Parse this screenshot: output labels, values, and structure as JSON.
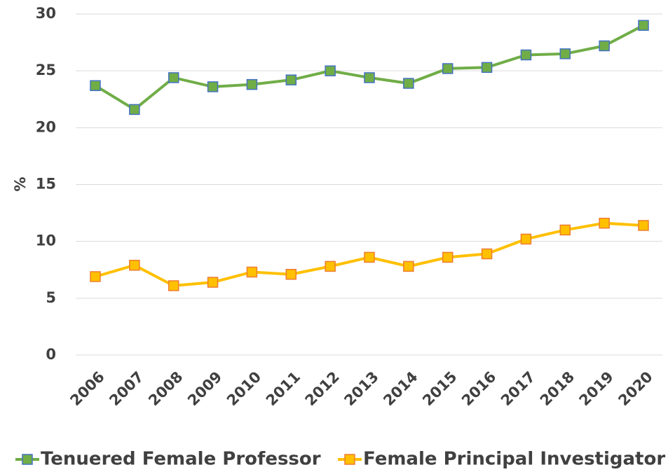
{
  "chart_data": {
    "type": "line",
    "y_label": "%",
    "categories": [
      "2006",
      "2007",
      "2008",
      "2009",
      "2010",
      "2011",
      "2012",
      "2013",
      "2014",
      "2015",
      "2016",
      "2017",
      "2018",
      "2019",
      "2020"
    ],
    "series": [
      {
        "name": "Tenuered Female Professor",
        "color": "#70ad47",
        "marker_edge": "#4472c4",
        "values": [
          23.7,
          21.6,
          24.4,
          23.6,
          23.8,
          24.2,
          25.0,
          24.4,
          23.9,
          25.2,
          25.3,
          26.4,
          26.5,
          27.2,
          29.0
        ]
      },
      {
        "name": "Female Principal Investigator",
        "color": "#ffc000",
        "marker_edge": "#ed7d31",
        "values": [
          6.9,
          7.9,
          6.1,
          6.4,
          7.3,
          7.1,
          7.8,
          8.6,
          7.8,
          8.6,
          8.9,
          10.2,
          11.0,
          11.6,
          11.4
        ]
      }
    ],
    "ylim": [
      0,
      30
    ],
    "yticks": [
      0,
      5,
      10,
      15,
      20,
      25,
      30
    ],
    "grid": true,
    "legend": "bottom"
  }
}
